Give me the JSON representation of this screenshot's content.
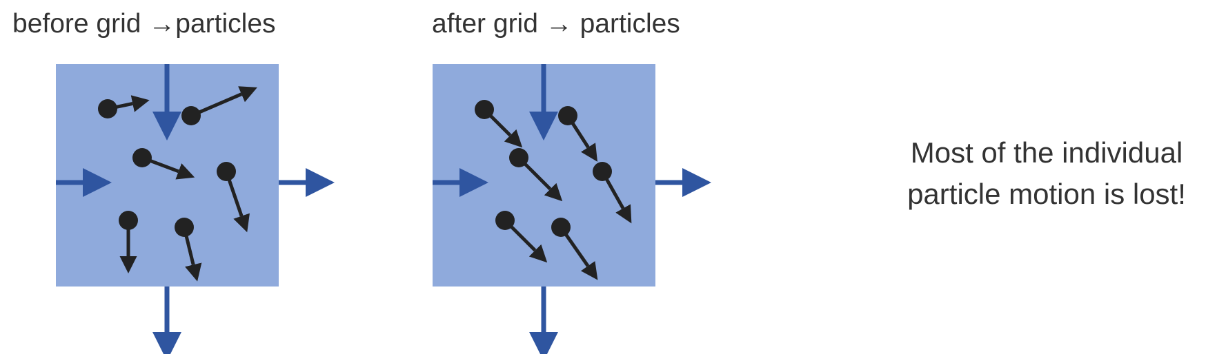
{
  "panels": [
    {
      "title": "before grid →particles",
      "color_cell": "#8faadc",
      "particles": [
        {
          "dx": 48,
          "dy": -10
        },
        {
          "dx": 84,
          "dy": -36
        },
        {
          "dx": 64,
          "dy": 24
        },
        {
          "dx": 26,
          "dy": 76
        },
        {
          "dx": 0,
          "dy": 64
        },
        {
          "dx": 16,
          "dy": 66
        }
      ]
    },
    {
      "title": "after grid →  particles",
      "color_cell": "#8faadc",
      "particles": [
        {
          "dx": 46,
          "dy": 46
        },
        {
          "dx": 36,
          "dy": 56
        },
        {
          "dx": 54,
          "dy": 54
        },
        {
          "dx": 36,
          "dy": 64
        },
        {
          "dx": 52,
          "dy": 52
        },
        {
          "dx": 46,
          "dy": 66
        }
      ]
    }
  ],
  "caption": {
    "line1": "Most of the individual",
    "line2": "particle motion is lost!"
  },
  "colors": {
    "cell": "#8faadc",
    "flow_arrow": "#2f55a0",
    "particle": "#222222",
    "text": "#333333"
  }
}
